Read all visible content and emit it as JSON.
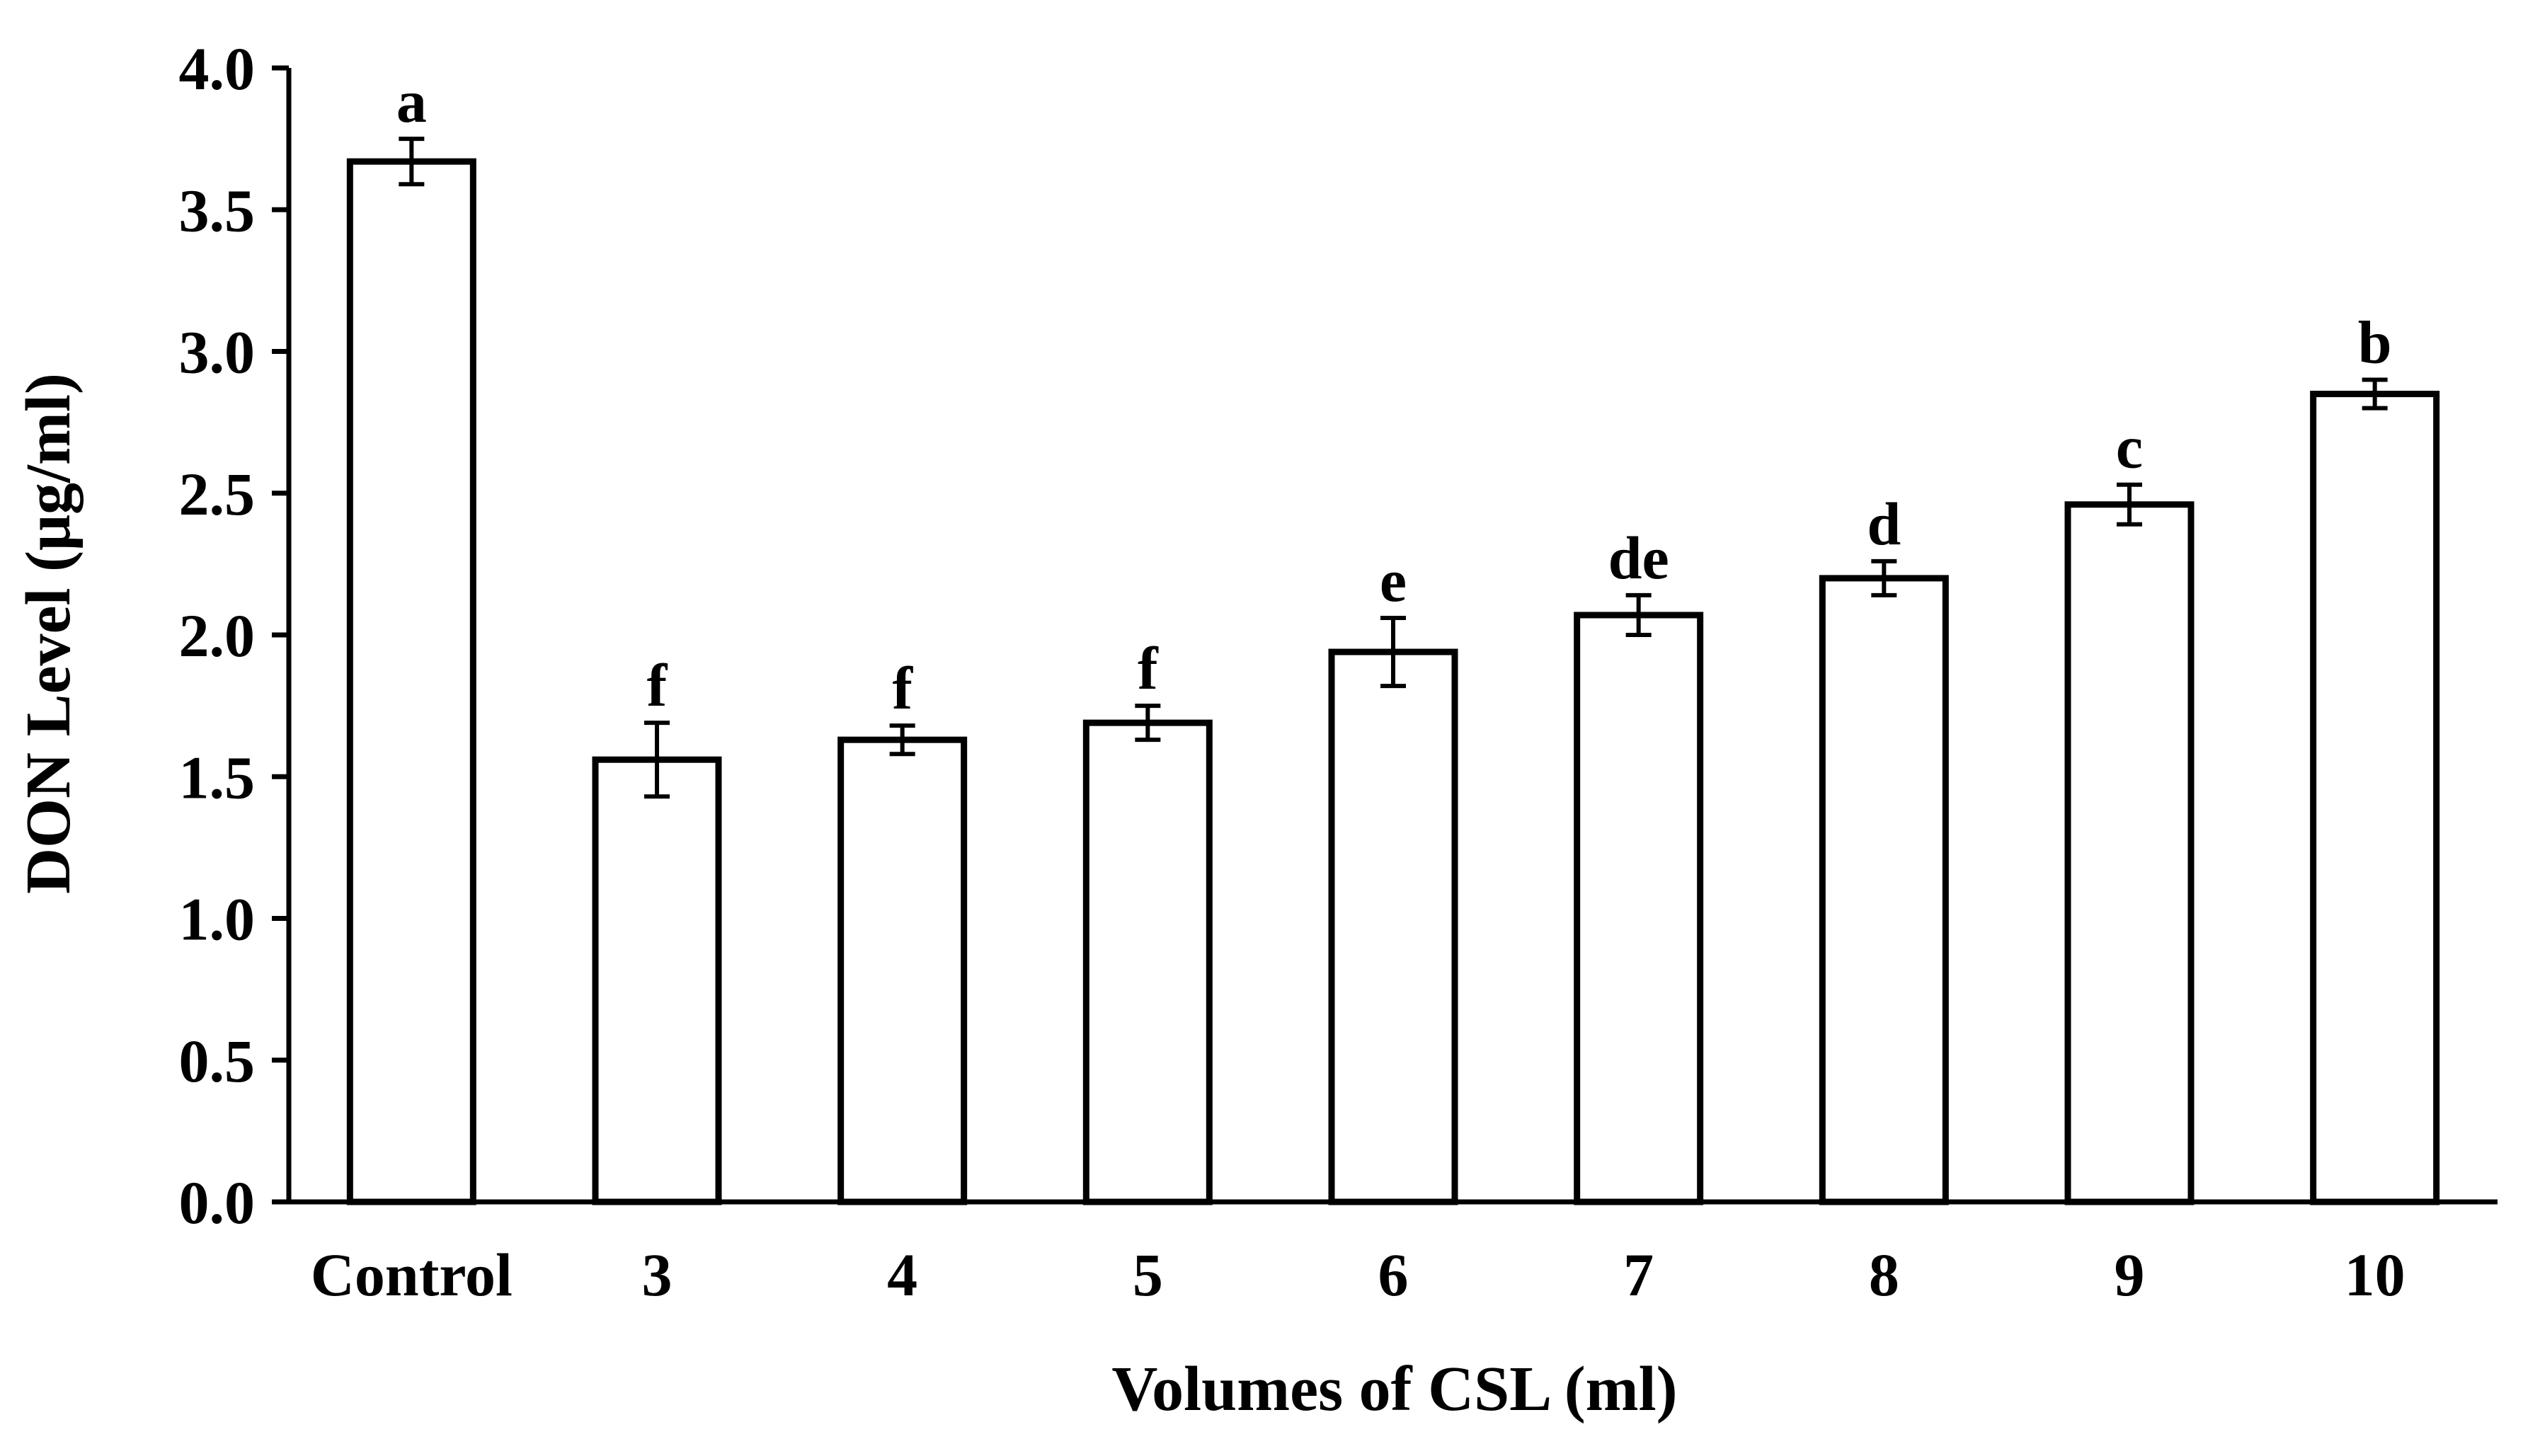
{
  "chart_data": {
    "type": "bar",
    "title": "",
    "xlabel": "Volumes of CSL (ml)",
    "ylabel": "DON Level (μg/ml)",
    "ylim": [
      0,
      4.0
    ],
    "yticks": [
      "0.0",
      "0.5",
      "1.0",
      "1.5",
      "2.0",
      "2.5",
      "3.0",
      "3.5",
      "4.0"
    ],
    "categories": [
      "Control",
      "3",
      "4",
      "5",
      "6",
      "7",
      "8",
      "9",
      "10"
    ],
    "values": [
      3.67,
      1.56,
      1.63,
      1.69,
      1.94,
      2.07,
      2.2,
      2.46,
      2.85
    ],
    "errors": [
      0.08,
      0.13,
      0.05,
      0.06,
      0.12,
      0.07,
      0.06,
      0.07,
      0.05
    ],
    "significance_letters": [
      "a",
      "f",
      "f",
      "f",
      "e",
      "de",
      "d",
      "c",
      "b"
    ],
    "grid": false,
    "legend": "none",
    "bar_fill": "#ffffff",
    "bar_stroke": "#000000"
  }
}
